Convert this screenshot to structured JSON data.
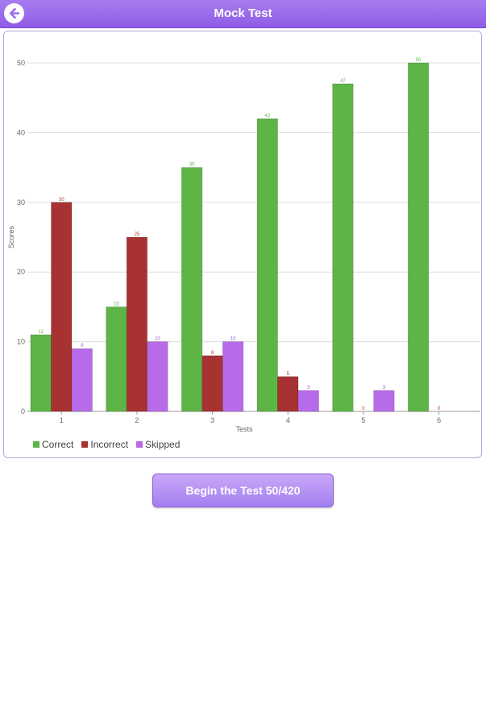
{
  "header": {
    "title": "Mock Test",
    "back_icon": "back-arrow-icon"
  },
  "colors": {
    "accent": "#9b6cf0",
    "correct": "#5db545",
    "incorrect": "#a83232",
    "skipped": "#b86be8"
  },
  "chart_data": {
    "type": "bar",
    "categories": [
      "1",
      "2",
      "3",
      "4",
      "5",
      "6"
    ],
    "series": [
      {
        "name": "Correct",
        "values": [
          11,
          15,
          35,
          42,
          47,
          50
        ]
      },
      {
        "name": "Incorrect",
        "values": [
          30,
          25,
          8,
          5,
          0,
          0
        ]
      },
      {
        "name": "Skipped",
        "values": [
          9,
          10,
          10,
          3,
          3,
          null
        ]
      }
    ],
    "xlabel": "Tests",
    "ylabel": "Scores",
    "ylim": [
      0,
      50
    ],
    "yticks": [
      0,
      10,
      20,
      30,
      40,
      50
    ],
    "grid": true,
    "legend": "bottom-left"
  },
  "actions": {
    "begin_label": "Begin the Test 50/420"
  }
}
